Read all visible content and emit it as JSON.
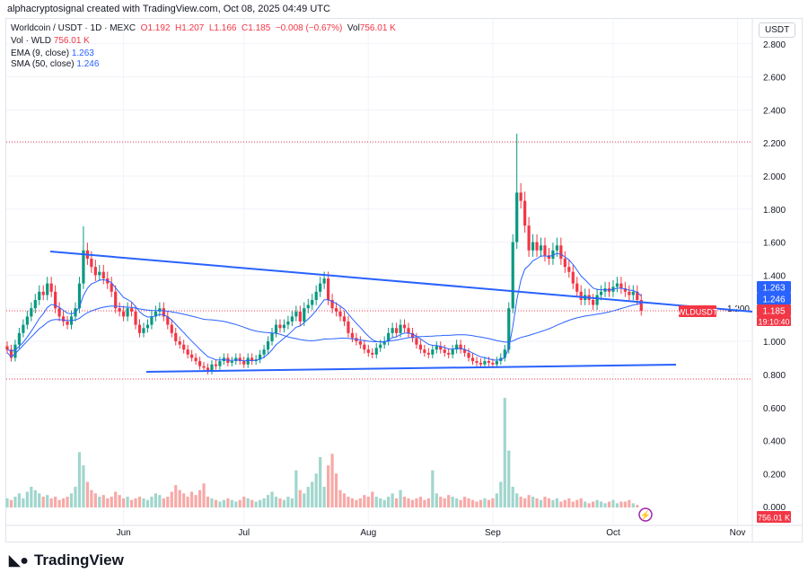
{
  "header": {
    "credit": "alphacryptosignal created with TradingView.com, Oct 08, 2025 04:49 UTC",
    "symbol": "Worldcoin / USDT · 1D · MEXC",
    "o": "O1.192",
    "h": "H1.207",
    "l": "L1.166",
    "c": "C1.185",
    "change": "−0.008 (−0.67%)",
    "vol_label": "Vol",
    "vol": "756.01 K",
    "vol_row": "Vol · WLD",
    "vol_row_value": "756.01 K",
    "ema_label": "EMA (9, close)",
    "ema": "1.263",
    "sma_label": "SMA (50, close)",
    "sma": "1.246"
  },
  "currency": "USDT",
  "price_tags": {
    "ema": "1.263",
    "sma": "1.246",
    "price": "1.185",
    "countdown": "19:10:40",
    "symbol_tag": "WLDUSDT",
    "volume": "756.01 K"
  },
  "brand": "TradingView",
  "colors": {
    "up": "#089981",
    "down": "#f23645",
    "ema": "#2962ff",
    "sma": "#2962ff",
    "trend": "#2962ff"
  },
  "chart_data": {
    "type": "candlestick",
    "start_date": "2025-05-03",
    "price_ticks": [
      "0.800",
      "1.000",
      "1.200",
      "1.400",
      "1.600",
      "1.800",
      "2.000",
      "2.200",
      "2.400",
      "2.600",
      "2.800"
    ],
    "volume_ticks": [
      "0.000",
      "0.200",
      "0.400",
      "0.600"
    ],
    "x_labels": [
      "Jun",
      "Jul",
      "Aug",
      "Sep",
      "Oct",
      "Nov"
    ],
    "closes": [
      0.95,
      0.9,
      0.98,
      1.05,
      1.1,
      1.15,
      1.2,
      1.25,
      1.3,
      1.28,
      1.35,
      1.3,
      1.2,
      1.15,
      1.12,
      1.1,
      1.15,
      1.2,
      1.35,
      1.55,
      1.5,
      1.45,
      1.4,
      1.42,
      1.38,
      1.35,
      1.3,
      1.2,
      1.18,
      1.15,
      1.2,
      1.18,
      1.1,
      1.05,
      1.08,
      1.1,
      1.15,
      1.18,
      1.2,
      1.15,
      1.1,
      1.05,
      1.0,
      0.98,
      0.95,
      0.92,
      0.9,
      0.88,
      0.85,
      0.84,
      0.82,
      0.86,
      0.85,
      0.88,
      0.9,
      0.87,
      0.88,
      0.9,
      0.88,
      0.86,
      0.9,
      0.88,
      0.89,
      0.92,
      0.95,
      1.0,
      1.05,
      1.1,
      1.08,
      1.1,
      1.12,
      1.15,
      1.18,
      1.12,
      1.2,
      1.22,
      1.25,
      1.3,
      1.35,
      1.38,
      1.25,
      1.2,
      1.18,
      1.15,
      1.12,
      1.05,
      1.02,
      1.0,
      0.98,
      0.95,
      0.93,
      0.92,
      0.96,
      0.98,
      1.0,
      1.05,
      1.08,
      1.05,
      1.1,
      1.08,
      1.05,
      1.02,
      0.98,
      0.95,
      0.93,
      0.92,
      0.95,
      0.97,
      0.95,
      0.93,
      0.92,
      0.95,
      0.98,
      0.95,
      0.93,
      0.9,
      0.88,
      0.87,
      0.86,
      0.88,
      0.87,
      0.86,
      0.88,
      0.9,
      0.95,
      1.2,
      1.6,
      1.9,
      1.85,
      1.7,
      1.55,
      1.6,
      1.55,
      1.58,
      1.52,
      1.5,
      1.55,
      1.58,
      1.5,
      1.45,
      1.42,
      1.35,
      1.3,
      1.25,
      1.28,
      1.25,
      1.22,
      1.28,
      1.3,
      1.32,
      1.3,
      1.33,
      1.35,
      1.32,
      1.3,
      1.28,
      1.3,
      1.25,
      1.185
    ],
    "volumes": [
      0.05,
      0.04,
      0.06,
      0.08,
      0.05,
      0.09,
      0.12,
      0.1,
      0.08,
      0.06,
      0.07,
      0.05,
      0.06,
      0.04,
      0.05,
      0.06,
      0.08,
      0.12,
      0.33,
      0.25,
      0.15,
      0.1,
      0.08,
      0.06,
      0.07,
      0.05,
      0.06,
      0.09,
      0.07,
      0.05,
      0.06,
      0.04,
      0.05,
      0.06,
      0.05,
      0.04,
      0.06,
      0.08,
      0.07,
      0.05,
      0.06,
      0.09,
      0.13,
      0.1,
      0.08,
      0.06,
      0.09,
      0.07,
      0.1,
      0.14,
      0.06,
      0.05,
      0.04,
      0.03,
      0.04,
      0.05,
      0.04,
      0.03,
      0.04,
      0.06,
      0.05,
      0.04,
      0.03,
      0.04,
      0.05,
      0.07,
      0.09,
      0.06,
      0.05,
      0.04,
      0.06,
      0.05,
      0.22,
      0.1,
      0.08,
      0.12,
      0.15,
      0.2,
      0.3,
      0.12,
      0.25,
      0.32,
      0.2,
      0.1,
      0.08,
      0.06,
      0.05,
      0.04,
      0.05,
      0.07,
      0.06,
      0.09,
      0.06,
      0.05,
      0.04,
      0.06,
      0.08,
      0.05,
      0.1,
      0.06,
      0.05,
      0.04,
      0.05,
      0.06,
      0.04,
      0.05,
      0.22,
      0.08,
      0.06,
      0.05,
      0.07,
      0.06,
      0.05,
      0.04,
      0.06,
      0.05,
      0.04,
      0.03,
      0.04,
      0.05,
      0.04,
      0.05,
      0.08,
      0.15,
      0.66,
      0.34,
      0.12,
      0.08,
      0.06,
      0.05,
      0.07,
      0.06,
      0.05,
      0.04,
      0.06,
      0.05,
      0.04,
      0.05,
      0.03,
      0.04,
      0.05,
      0.03,
      0.04,
      0.05,
      0.03,
      0.02,
      0.03,
      0.04,
      0.03,
      0.02,
      0.03,
      0.04,
      0.02,
      0.03,
      0.03,
      0.04,
      0.02,
      0.01
    ]
  }
}
